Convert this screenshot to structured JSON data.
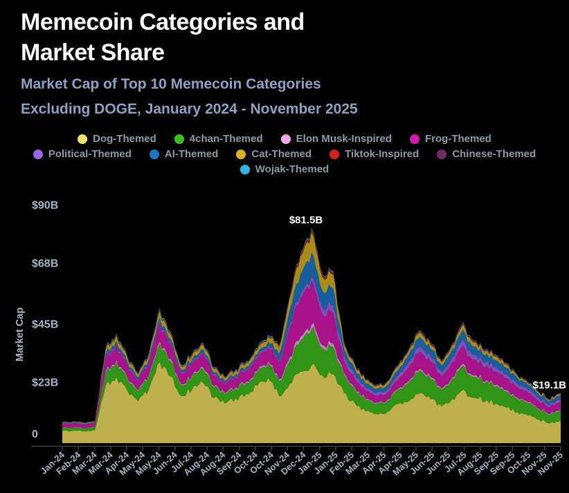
{
  "header": {
    "title_line1": "Memecoin Categories and",
    "title_line2": "Market Share",
    "subtitle_line1": "Market Cap of Top 10 Memecoin Categories",
    "subtitle_line2": "Excluding DOGE, January 2024 - November 2025"
  },
  "theme": {
    "background": "#000000",
    "title_color": "#ffffff",
    "subtitle_color": "#8ca2c2",
    "axis_text_color": "#a4b6c6",
    "legend_text_color": "#8d99a5",
    "axis_line_color": "#3a3f44",
    "annotation_color": "#ffffff"
  },
  "chart_data": {
    "type": "area",
    "stacked": true,
    "title": "Market Cap of Top 10 Memecoin Categories Excluding DOGE, January 2024 - November 2025",
    "xlabel": "",
    "ylabel": "Market Cap",
    "unit": "billion USD",
    "ylim": [
      0,
      90
    ],
    "grid": false,
    "legend_position": "top",
    "area_opacity": 0.78,
    "y_ticks": [
      {
        "value": 0,
        "label": "0"
      },
      {
        "value": 23,
        "label": "$23B"
      },
      {
        "value": 45,
        "label": "$45B"
      },
      {
        "value": 68,
        "label": "$68B"
      },
      {
        "value": 90,
        "label": "$90B"
      }
    ],
    "x_tick_labels": [
      "Jan-24",
      "Feb-24",
      "Mar-24",
      "Mar-24",
      "Apr-24",
      "May-24",
      "May-24",
      "Jun-24",
      "Jul-24",
      "Aug-24",
      "Aug-24",
      "Sep-24",
      "Oct-24",
      "Oct-24",
      "Nov-24",
      "Dec-24",
      "Jan-25",
      "Jan-25",
      "Feb-25",
      "Mar-25",
      "Apr-25",
      "Apr-25",
      "May-25",
      "Jun-25",
      "Jun-25",
      "Jul-25",
      "Aug-25",
      "Sep-25",
      "Sep-25",
      "Oct-25",
      "Nov-25",
      "Nov-25"
    ],
    "x": [
      "Jan-24",
      "Jan-24",
      "Feb-24",
      "Feb-24",
      "Mar-24",
      "Mar-24",
      "Apr-24",
      "Apr-24",
      "May-24",
      "May-24",
      "Jun-24",
      "Jun-24",
      "Jul-24",
      "Jul-24",
      "Aug-24",
      "Aug-24",
      "Sep-24",
      "Sep-24",
      "Oct-24",
      "Oct-24",
      "Nov-24",
      "Nov-24",
      "Dec-24",
      "Dec-24",
      "Jan-25",
      "Jan-25",
      "Feb-25",
      "Feb-25",
      "Mar-25",
      "Mar-25",
      "Apr-25",
      "Apr-25",
      "May-25",
      "May-25",
      "Jun-25",
      "Jun-25",
      "Jul-25",
      "Jul-25",
      "Aug-25",
      "Aug-25",
      "Sep-25",
      "Sep-25",
      "Oct-25",
      "Oct-25",
      "Nov-25",
      "Nov-25",
      "Nov-25"
    ],
    "series": [
      {
        "name": "Dog-Themed",
        "color": "#f2e263",
        "values": [
          4.6,
          4.7,
          4.45,
          4.8,
          21.6,
          24.9,
          19.8,
          15.9,
          20.4,
          30.6,
          25.2,
          17.7,
          20.4,
          22.8,
          17.1,
          15,
          16.8,
          18.6,
          21.6,
          24.6,
          17.8,
          22.4,
          27,
          29.3,
          25.6,
          26,
          19,
          15,
          12,
          11,
          11.8,
          14.8,
          15.8,
          18.9,
          16.7,
          13.9,
          16.7,
          20.2,
          17.2,
          15.6,
          14.8,
          13.4,
          11.7,
          10.4,
          8.8,
          7.4,
          8.6
        ]
      },
      {
        "name": "4chan-Themed",
        "color": "#3dbe1d",
        "values": [
          1.1,
          1.15,
          1.1,
          1.2,
          5,
          5.8,
          4.6,
          3.7,
          4.8,
          7.1,
          5.9,
          4.1,
          4.8,
          5.3,
          4,
          3.5,
          3.9,
          4.35,
          5,
          5.75,
          5.7,
          9,
          11.9,
          13.9,
          10.2,
          10.4,
          6.8,
          5.4,
          4.3,
          4,
          4.2,
          5.3,
          7.2,
          8.6,
          7.6,
          6.3,
          7.6,
          9.2,
          7.8,
          7.1,
          6.7,
          6.1,
          5.2,
          4.6,
          3.9,
          3.3,
          3.8
        ]
      },
      {
        "name": "Elon Musk-Inspired",
        "color": "#f2a6e8",
        "values": [
          0.12,
          0.12,
          0.12,
          0.12,
          0.55,
          0.6,
          0.5,
          0.4,
          0.5,
          0.75,
          0.6,
          0.45,
          0.5,
          0.55,
          0.43,
          0.38,
          0.42,
          0.45,
          0.54,
          0.6,
          0.6,
          1.1,
          1.4,
          1.6,
          1.3,
          1.3,
          0.57,
          0.45,
          0.36,
          0.33,
          0.35,
          0.44,
          0.54,
          0.65,
          0.57,
          0.47,
          0.57,
          0.7,
          0.59,
          0.53,
          0.5,
          0.46,
          0.39,
          0.35,
          0.29,
          0.25,
          0.29
        ]
      },
      {
        "name": "Frog-Themed",
        "color": "#d818b0",
        "values": [
          1.35,
          1.4,
          1.3,
          1.4,
          4.9,
          5.6,
          4.45,
          3.6,
          4.6,
          6.9,
          5.7,
          4,
          4.6,
          5.1,
          3.85,
          3.4,
          3.8,
          4.2,
          4.85,
          5.5,
          6.3,
          11.2,
          14.4,
          16.6,
          11.5,
          11.7,
          4.6,
          3.6,
          2.9,
          2.6,
          2.8,
          3.55,
          5.4,
          6.45,
          5.7,
          4.7,
          5.7,
          6.9,
          5.85,
          5.3,
          5,
          4.6,
          3.9,
          3.45,
          2.9,
          2.5,
          2.9
        ]
      },
      {
        "name": "Political-Themed",
        "color": "#9b66e8",
        "values": [
          0.12,
          0.12,
          0.12,
          0.13,
          0.55,
          0.6,
          0.5,
          0.4,
          0.5,
          0.75,
          0.6,
          0.45,
          0.5,
          0.55,
          0.43,
          0.38,
          0.42,
          0.45,
          0.54,
          0.6,
          0.6,
          1.1,
          1.4,
          1.6,
          2.6,
          2.6,
          1.9,
          1.5,
          1.2,
          1.1,
          1.2,
          1.5,
          1.8,
          2.15,
          1.9,
          1.6,
          1.9,
          2.3,
          1.95,
          1.8,
          1.7,
          1.5,
          1.4,
          1.25,
          1.1,
          0.9,
          1.05
        ]
      },
      {
        "name": "AI-Themed",
        "color": "#1e78c8",
        "values": [
          0.25,
          0.25,
          0.24,
          0.25,
          1.1,
          1.25,
          1,
          0.8,
          1,
          1.55,
          1.25,
          0.9,
          1,
          1.15,
          0.85,
          0.75,
          0.84,
          0.95,
          1.08,
          1.25,
          2.6,
          5.6,
          7.9,
          9,
          6.4,
          6.5,
          2.7,
          2.1,
          1.7,
          1.55,
          1.65,
          2.05,
          2.9,
          3.45,
          3.05,
          2.5,
          3.05,
          3.7,
          3.1,
          2.85,
          2.7,
          2.45,
          2.1,
          1.85,
          1.55,
          1.3,
          1.55
        ]
      },
      {
        "name": "Cat-Themed",
        "color": "#d9b31c",
        "values": [
          0.25,
          0.25,
          0.24,
          0.25,
          1.6,
          1.9,
          1.5,
          1.2,
          1.5,
          2.3,
          1.9,
          1.3,
          1.5,
          1.7,
          1.3,
          1.1,
          1.25,
          1.4,
          1.62,
          1.85,
          2.6,
          4.5,
          6.5,
          7.7,
          5.1,
          5.2,
          1.7,
          1.35,
          1.1,
          1,
          1.05,
          1.35,
          1.45,
          1.7,
          1.5,
          1.25,
          1.5,
          1.85,
          1.55,
          1.4,
          1.35,
          1.2,
          0.78,
          0.69,
          0.59,
          0.5,
          0.57
        ]
      },
      {
        "name": "Tiktok-Inspired",
        "color": "#d42222",
        "values": [
          0.04,
          0.04,
          0.04,
          0.04,
          0.18,
          0.2,
          0.17,
          0.13,
          0.17,
          0.26,
          0.21,
          0.15,
          0.17,
          0.19,
          0.14,
          0.13,
          0.14,
          0.15,
          0.18,
          0.2,
          0.25,
          0.4,
          0.5,
          0.6,
          0.45,
          0.45,
          0.27,
          0.21,
          0.17,
          0.15,
          0.16,
          0.21,
          0.25,
          0.3,
          0.27,
          0.22,
          0.27,
          0.32,
          0.27,
          0.25,
          0.23,
          0.21,
          0.18,
          0.16,
          0.14,
          0.12,
          0.13
        ]
      },
      {
        "name": "Chinese-Themed",
        "color": "#702b66",
        "values": [
          0.04,
          0.04,
          0.04,
          0.04,
          0.18,
          0.2,
          0.17,
          0.13,
          0.17,
          0.26,
          0.21,
          0.15,
          0.17,
          0.19,
          0.14,
          0.13,
          0.14,
          0.15,
          0.18,
          0.2,
          0.25,
          0.4,
          0.5,
          0.6,
          0.45,
          0.45,
          0.27,
          0.21,
          0.17,
          0.15,
          0.16,
          0.21,
          0.25,
          0.3,
          0.27,
          0.22,
          0.27,
          0.32,
          0.27,
          0.25,
          0.23,
          0.21,
          0.18,
          0.16,
          0.14,
          0.12,
          0.13
        ]
      },
      {
        "name": "Wojak-Themed",
        "color": "#2bb7ec",
        "values": [
          0.08,
          0.08,
          0.08,
          0.08,
          0.36,
          0.4,
          0.33,
          0.27,
          0.34,
          0.5,
          0.42,
          0.3,
          0.34,
          0.38,
          0.29,
          0.25,
          0.28,
          0.31,
          0.36,
          0.4,
          0.2,
          0.3,
          0.4,
          0.5,
          0.4,
          0.4,
          0.23,
          0.18,
          0.14,
          0.13,
          0.14,
          0.18,
          0.22,
          0.26,
          0.23,
          0.19,
          0.23,
          0.28,
          0.23,
          0.21,
          0.2,
          0.18,
          0.16,
          0.14,
          0.12,
          0.1,
          0.11
        ]
      }
    ],
    "annotations": [
      {
        "label": "$81.5B",
        "x_index": 23,
        "value": 81.5,
        "placement": "above-peak"
      },
      {
        "label": "$19.1B",
        "x_index": 46,
        "value": 19.1,
        "placement": "right-end"
      }
    ]
  }
}
